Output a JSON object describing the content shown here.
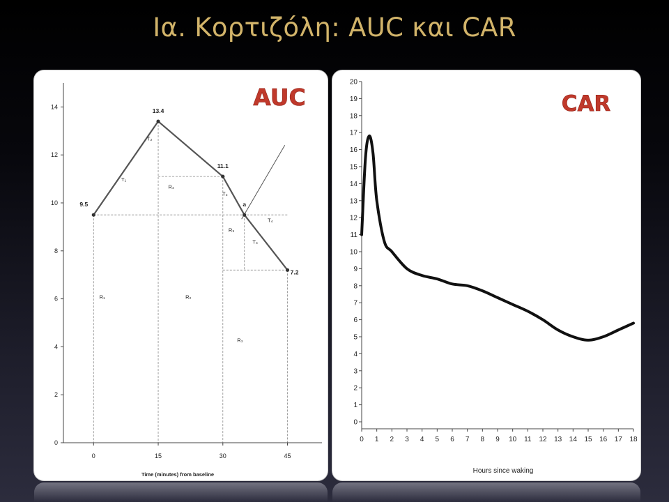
{
  "slide": {
    "title": "Ια. Κορτιζόλη: AUC και CAR"
  },
  "chart_data": [
    {
      "type": "line",
      "badge": "AUC",
      "xlabel": "Time (minutes) from baseline",
      "ylabel": "",
      "x": [
        0,
        15,
        30,
        35,
        45
      ],
      "series": [
        {
          "values": [
            9.5,
            13.4,
            11.1,
            9.5,
            7.2
          ]
        }
      ],
      "point_labels": [
        "9.5",
        "13.4",
        "11.1",
        "a",
        "7.2"
      ],
      "x_ticks": [
        "0",
        "15",
        "30",
        "45"
      ],
      "y_ticks": [
        "0",
        "2",
        "4",
        "6",
        "8",
        "10",
        "12",
        "14"
      ],
      "xlim": [
        -7,
        53
      ],
      "ylim": [
        0,
        15
      ],
      "region_labels": [
        "R₁",
        "R₂",
        "R₃",
        "R₄",
        "R₅",
        "T₁",
        "T₂",
        "T₃",
        "T₄",
        "T₄"
      ],
      "grid": false
    },
    {
      "type": "line",
      "badge": "CAR",
      "xlabel": "Hours since waking",
      "ylabel": "",
      "x_ticks": [
        "0",
        "1",
        "2",
        "3",
        "4",
        "5",
        "6",
        "7",
        "8",
        "9",
        "10",
        "11",
        "12",
        "13",
        "14",
        "15",
        "16",
        "17",
        "18"
      ],
      "y_ticks": [
        "0",
        "1",
        "2",
        "3",
        "4",
        "5",
        "6",
        "7",
        "8",
        "9",
        "10",
        "11",
        "12",
        "13",
        "14",
        "15",
        "16",
        "17",
        "18",
        "19",
        "20"
      ],
      "xlim": [
        0,
        18
      ],
      "ylim": [
        0,
        20
      ],
      "series": [
        {
          "x": [
            0,
            0.25,
            0.5,
            0.75,
            1.0,
            1.5,
            2,
            3,
            4,
            5,
            6,
            7,
            8,
            9,
            10,
            11,
            12,
            13,
            14,
            15,
            16,
            17,
            18
          ],
          "values": [
            11.0,
            15.5,
            16.8,
            15.8,
            13.0,
            10.6,
            10.0,
            9.0,
            8.6,
            8.4,
            8.1,
            8.0,
            7.7,
            7.3,
            6.9,
            6.5,
            6.0,
            5.4,
            5.0,
            4.8,
            5.0,
            5.4,
            5.8
          ]
        }
      ],
      "grid": false
    }
  ]
}
